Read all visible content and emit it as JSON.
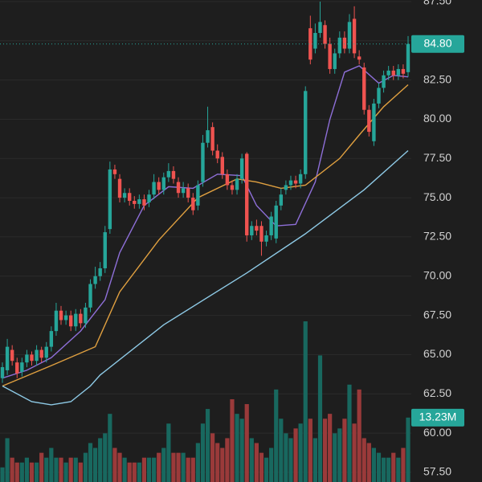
{
  "chart_data": {
    "type": "candlestick",
    "open": [
      63.5,
      64,
      65.3,
      64.5,
      63.9,
      64.5,
      65,
      64.6,
      65.3,
      64.8,
      65.5,
      66.5,
      67.8,
      67.2,
      67.5,
      66.8,
      67.6,
      67,
      68,
      69.5,
      70,
      70.5,
      73,
      76.8,
      76.2,
      75,
      75.3,
      74.8,
      74.6,
      74.9,
      74.7,
      75.2,
      76,
      75.5,
      76.3,
      76.7,
      76,
      75.3,
      75.6,
      75,
      74.5,
      76,
      78.5,
      79.5,
      78,
      77.6,
      76.5,
      75.8,
      75.5,
      76.2,
      77.8,
      72.6,
      73.2,
      73.2,
      72.2,
      72.6,
      72.4,
      74.5,
      75.5,
      75.8,
      76.1,
      75.9,
      76.5,
      85.8,
      84.5,
      85.5,
      86,
      84.8,
      83.2,
      84.2,
      85.2,
      84.5,
      86.4,
      84,
      83.3,
      80.6,
      78.6,
      81,
      82,
      82.8,
      83.1,
      82.8,
      83.2,
      83
    ],
    "high": [
      64.5,
      66,
      65.6,
      64.8,
      64.8,
      65.3,
      65.2,
      65.6,
      65.5,
      65.8,
      66.8,
      68.3,
      68.1,
      67.8,
      67.8,
      67.9,
      67.9,
      68.3,
      69.8,
      70.6,
      70.9,
      73.2,
      77.3,
      77.1,
      76.5,
      75.6,
      75.6,
      75.1,
      75.2,
      75.2,
      75.5,
      76.5,
      76.3,
      76.6,
      77.2,
      77,
      76.3,
      76,
      75.9,
      75.3,
      76.1,
      79,
      80.8,
      79.8,
      78.4,
      77.9,
      76.8,
      76.1,
      76.5,
      77.8,
      77.9,
      73.5,
      73.6,
      73.5,
      72.9,
      74.1,
      74.8,
      75.6,
      76.1,
      76.4,
      76.4,
      76.8,
      82.1,
      86.6,
      86.1,
      87.5,
      86.3,
      85.2,
      84.5,
      85.6,
      85.6,
      86.7,
      87.2,
      84.4,
      83.6,
      80.9,
      81.3,
      82.3,
      83.1,
      83.4,
      83.4,
      83.5,
      83.5,
      85.3
    ],
    "low": [
      63.2,
      63.7,
      64.3,
      63.5,
      63.6,
      64.2,
      64.3,
      64.3,
      64.5,
      64.5,
      65.2,
      66.2,
      66.9,
      66.9,
      66.5,
      66.5,
      66.7,
      66.7,
      67.7,
      69.2,
      69.7,
      70.2,
      72.7,
      76.2,
      74.7,
      74.7,
      74.5,
      74.3,
      74.3,
      74.2,
      74.4,
      74.9,
      75.2,
      75.2,
      76,
      75.9,
      75,
      75,
      74.7,
      73.9,
      74.2,
      75.7,
      78.2,
      77.7,
      77.2,
      76.2,
      75.5,
      75.2,
      75.2,
      75.9,
      72.2,
      72.3,
      72.6,
      71.3,
      71.9,
      72.3,
      72.1,
      74.2,
      75.2,
      75.5,
      75.6,
      75.6,
      76.2,
      83.5,
      84.2,
      85.2,
      84.5,
      82.9,
      82.9,
      83.9,
      84.2,
      84.2,
      83.9,
      83.5,
      80.3,
      78.9,
      78.3,
      80.7,
      81.7,
      82.5,
      82.5,
      82.5,
      82.6,
      82.7
    ],
    "close": [
      64.2,
      65.5,
      64.6,
      63.8,
      64.5,
      65,
      64.6,
      65.3,
      64.8,
      65.5,
      66.5,
      67.8,
      67.2,
      67.5,
      66.8,
      67.6,
      67,
      68,
      69.5,
      70,
      70.5,
      72.8,
      76.8,
      76.5,
      75,
      75.3,
      74.8,
      74.6,
      74.9,
      74.5,
      75.2,
      76,
      75.5,
      76.3,
      76.7,
      76.2,
      75.3,
      75.6,
      75,
      74.2,
      75.8,
      78.5,
      79.3,
      78,
      77.5,
      76.5,
      75.8,
      75.5,
      76.2,
      77.5,
      72.6,
      73.2,
      72.9,
      72.2,
      72.6,
      73.8,
      74.5,
      75.2,
      75.8,
      76.1,
      75.9,
      76.5,
      81.8,
      83.8,
      85.5,
      86.2,
      84.8,
      83.2,
      84.2,
      85.2,
      84.5,
      86.2,
      84.2,
      83.8,
      80.6,
      79.2,
      81,
      82,
      82.8,
      83.1,
      82.8,
      83.2,
      82.9,
      84.8
    ],
    "volume": [
      3,
      9,
      5,
      4,
      4,
      5,
      4,
      4,
      6,
      5,
      7,
      5,
      5,
      4,
      5,
      5,
      4,
      6,
      8,
      7,
      9,
      10,
      14,
      7,
      6,
      5,
      4,
      4,
      4,
      5,
      5,
      5,
      6,
      7,
      12,
      6,
      6,
      6,
      5,
      5,
      8,
      12,
      15,
      10,
      8,
      7,
      9,
      17,
      14,
      13,
      16,
      9,
      8,
      6,
      5,
      7,
      19,
      13,
      10,
      9,
      11,
      12,
      33,
      13,
      9,
      26,
      13,
      14,
      10,
      11,
      13,
      20,
      12,
      19,
      9,
      8,
      7,
      6,
      5,
      5,
      6,
      5,
      7,
      13.23
    ],
    "up_color": "#26a69a",
    "down_color": "#ef5350",
    "volume_up_color": "#18685f",
    "volume_down_color": "#9a3a3a",
    "lines": [
      {
        "color": "#8e6fd8",
        "x": [
          0,
          5,
          10,
          16,
          21,
          24,
          29,
          34,
          39,
          44,
          49,
          52,
          56,
          60,
          64,
          67,
          70,
          73,
          77,
          80,
          83
        ],
        "values": [
          63.5,
          64,
          64.8,
          66.5,
          68.5,
          71.5,
          74.5,
          75.7,
          75.6,
          76.5,
          76.4,
          74.5,
          73.2,
          73.3,
          76,
          80,
          83,
          83.4,
          82.3,
          82.8,
          82.7
        ]
      },
      {
        "color": "#e0a040",
        "x": [
          0,
          10,
          19,
          24,
          32,
          40,
          48,
          52,
          57,
          62,
          69,
          73,
          78,
          83
        ],
        "values": [
          63,
          64.3,
          65.5,
          69,
          72.3,
          75,
          76.2,
          76,
          75.6,
          75.8,
          77.5,
          79,
          80.8,
          82.2
        ]
      },
      {
        "color": "#8ecae6",
        "x": [
          0,
          6,
          10,
          14,
          18,
          20,
          33,
          50,
          62,
          74,
          83
        ],
        "values": [
          63,
          62,
          61.8,
          62,
          63,
          63.7,
          66.9,
          70.2,
          72.7,
          75.5,
          78
        ]
      }
    ],
    "current_price": {
      "value": 84.8,
      "label": "84.80"
    },
    "current_volume": {
      "value": 13.23,
      "label": "13.23M"
    },
    "ylim": [
      56.88,
      87.6
    ],
    "vlim": [
      0,
      33
    ],
    "yticks": [
      {
        "value": 57.5,
        "label": "57.50"
      },
      {
        "value": 60,
        "label": "60.00"
      },
      {
        "value": 62.5,
        "label": "62.50"
      },
      {
        "value": 65,
        "label": "65.00"
      },
      {
        "value": 67.5,
        "label": "67.50"
      },
      {
        "value": 70,
        "label": "70.00"
      },
      {
        "value": 72.5,
        "label": "72.50"
      },
      {
        "value": 75,
        "label": "75.00"
      },
      {
        "value": 77.5,
        "label": "77.50"
      },
      {
        "value": 80,
        "label": "80.00"
      },
      {
        "value": 82.5,
        "label": "82.50"
      },
      {
        "value": 85,
        "label": "85.00"
      },
      {
        "value": 87.5,
        "label": "87.50"
      }
    ],
    "grid": true
  }
}
